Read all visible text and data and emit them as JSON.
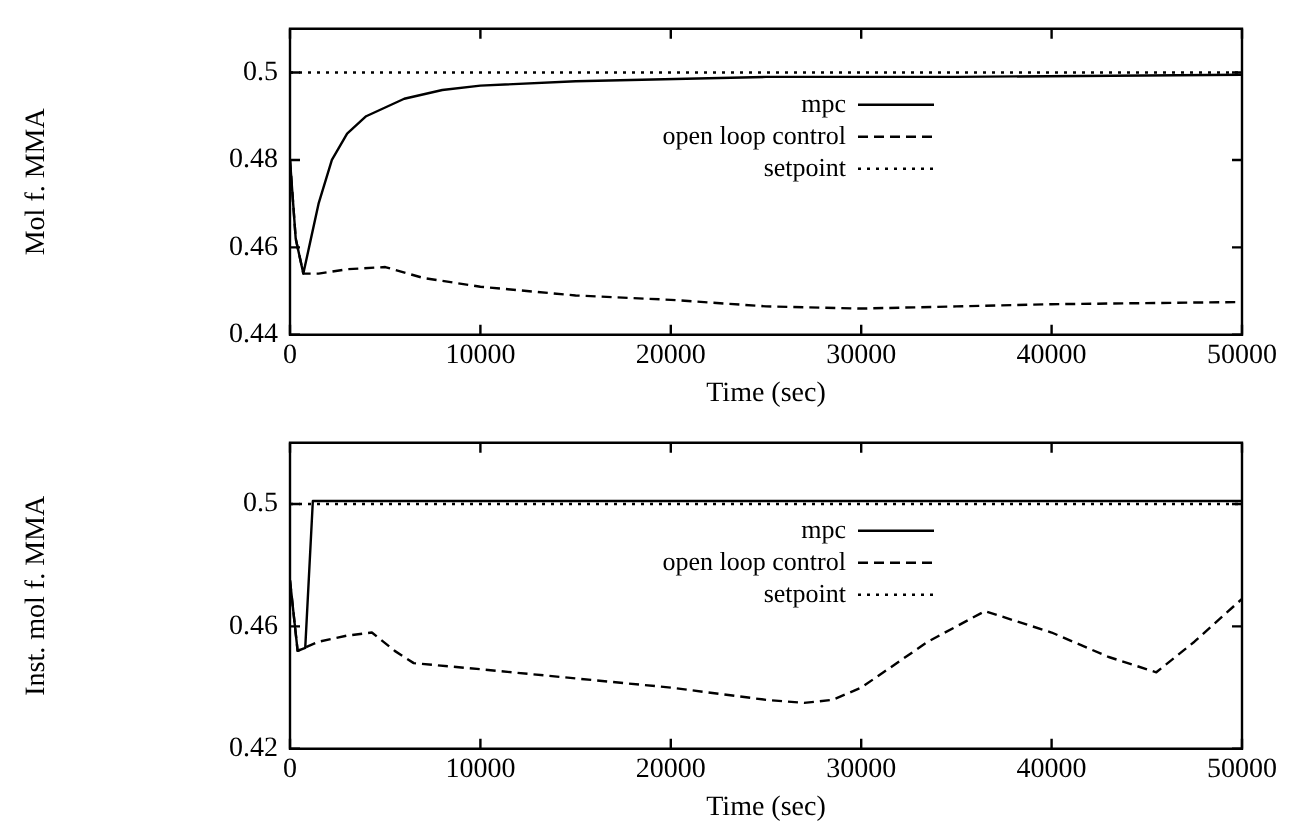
{
  "chart_data": [
    {
      "type": "line",
      "xlabel": "Time (sec)",
      "ylabel": "Mol f. MMA",
      "xlim": [
        0,
        50000
      ],
      "xticks": [
        0,
        10000,
        20000,
        30000,
        40000,
        50000
      ],
      "ylim": [
        0.44,
        0.51
      ],
      "yticks": [
        0.44,
        0.46,
        0.48,
        0.5
      ],
      "grid": false,
      "legend": "top",
      "marker": "none",
      "series": [
        {
          "name": "mpc",
          "color": "#000000",
          "line_style": "solid",
          "x": [
            0,
            300,
            700,
            1100,
            1500,
            2200,
            3000,
            4000,
            6000,
            8000,
            10000,
            15000,
            25000,
            35000,
            50000
          ],
          "values": [
            0.48,
            0.462,
            0.454,
            0.462,
            0.47,
            0.48,
            0.486,
            0.49,
            0.494,
            0.496,
            0.497,
            0.498,
            0.499,
            0.499,
            0.4995
          ]
        },
        {
          "name": "open loop control",
          "color": "#000000",
          "line_style": "dashed",
          "x": [
            0,
            300,
            700,
            1500,
            3000,
            5000,
            7000,
            10000,
            15000,
            20000,
            25000,
            30000,
            35000,
            40000,
            50000
          ],
          "values": [
            0.48,
            0.462,
            0.454,
            0.454,
            0.455,
            0.4555,
            0.453,
            0.451,
            0.449,
            0.448,
            0.4465,
            0.446,
            0.4465,
            0.447,
            0.4475
          ]
        },
        {
          "name": "setpoint",
          "color": "#000000",
          "line_style": "dotted",
          "x": [
            0,
            50000
          ],
          "values": [
            0.5,
            0.5
          ]
        }
      ]
    },
    {
      "type": "line",
      "xlabel": "Time (sec)",
      "ylabel": "Inst. mol f. MMA",
      "xlim": [
        0,
        50000
      ],
      "xticks": [
        0,
        10000,
        20000,
        30000,
        40000,
        50000
      ],
      "ylim": [
        0.42,
        0.52
      ],
      "yticks": [
        0.42,
        0.46,
        0.5
      ],
      "grid": false,
      "legend": "top",
      "marker": "none",
      "series": [
        {
          "name": "mpc",
          "color": "#000000",
          "line_style": "solid",
          "x": [
            0,
            400,
            800,
            1200,
            50000
          ],
          "values": [
            0.475,
            0.452,
            0.453,
            0.501,
            0.501
          ]
        },
        {
          "name": "open loop control",
          "color": "#000000",
          "line_style": "dashed",
          "x": [
            0,
            400,
            1500,
            3000,
            4300,
            5500,
            6500,
            10000,
            15000,
            20000,
            25000,
            27000,
            28500,
            30000,
            33500,
            36500,
            40000,
            43000,
            45500,
            47500,
            50000
          ],
          "values": [
            0.475,
            0.452,
            0.455,
            0.457,
            0.458,
            0.452,
            0.448,
            0.446,
            0.443,
            0.44,
            0.436,
            0.435,
            0.436,
            0.44,
            0.455,
            0.465,
            0.458,
            0.45,
            0.445,
            0.455,
            0.469
          ]
        },
        {
          "name": "setpoint",
          "color": "#000000",
          "line_style": "dotted",
          "x": [
            0,
            50000
          ],
          "values": [
            0.5,
            0.5
          ]
        }
      ]
    }
  ]
}
